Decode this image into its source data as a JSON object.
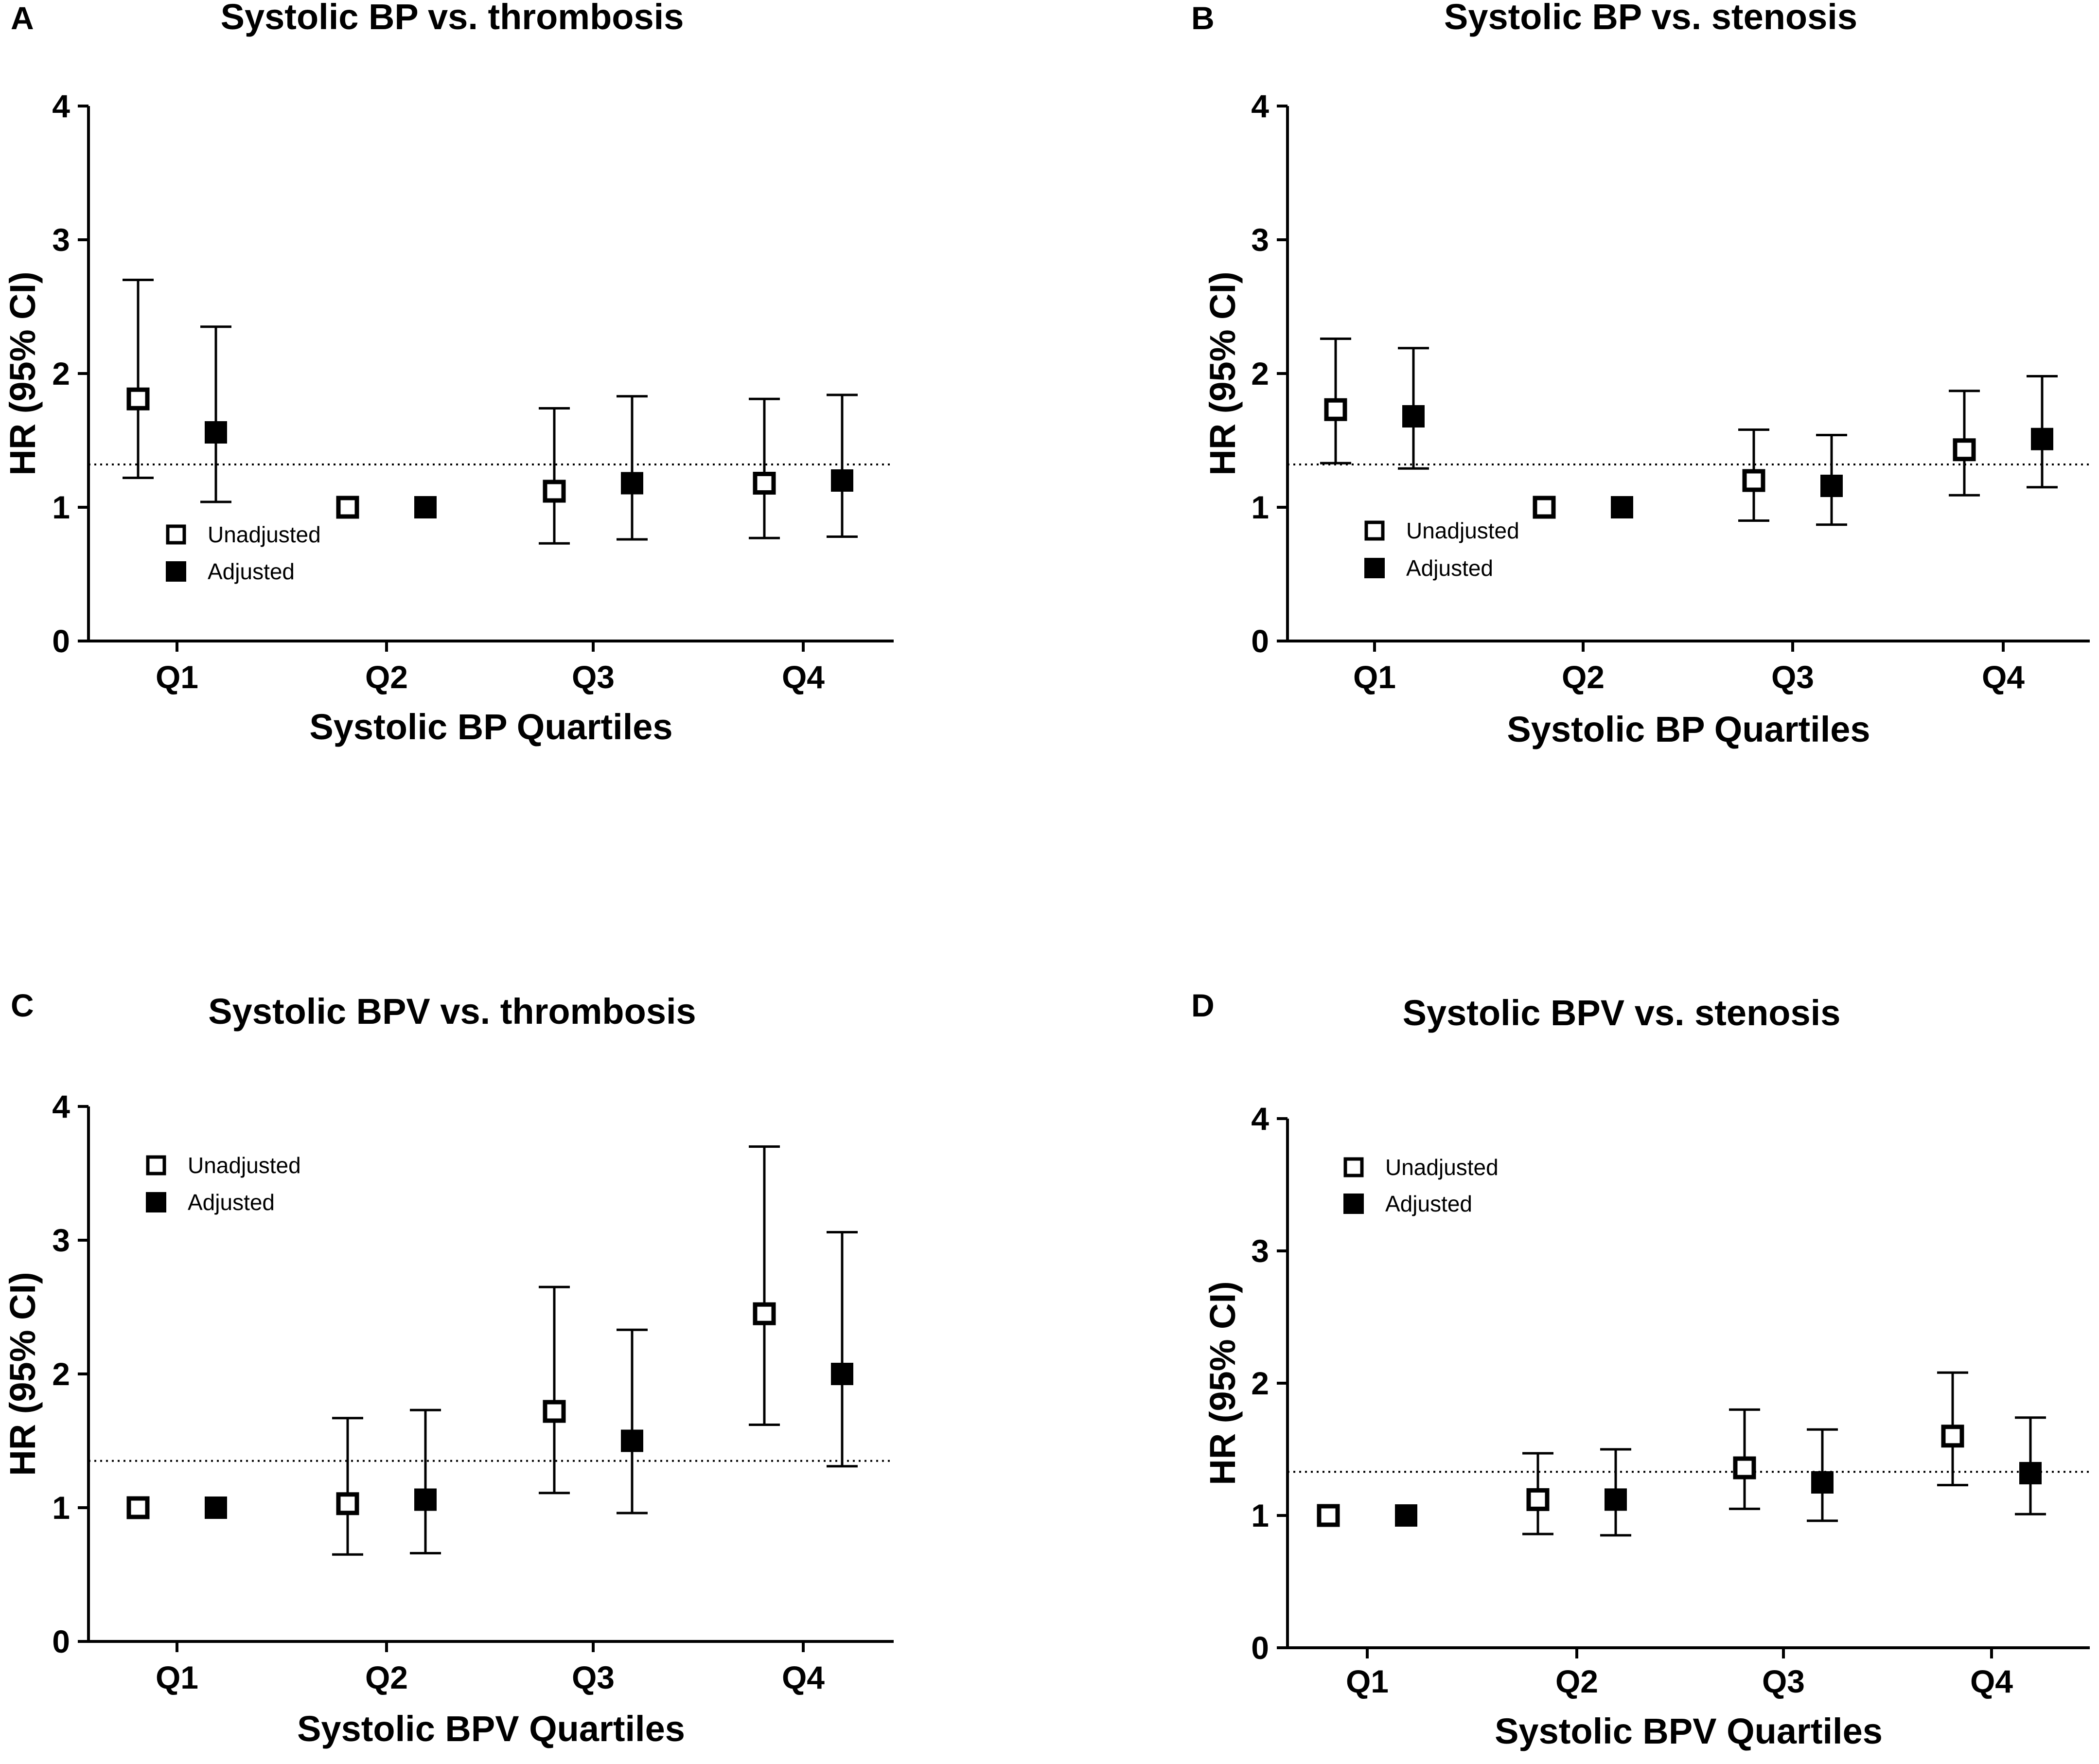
{
  "chart_data": [
    {
      "panel": "A",
      "type": "scatter",
      "title": "Systolic BP vs. thrombosis",
      "xlabel": "Systolic BP Quartiles",
      "ylabel": "HR (95% CI)",
      "categories": [
        "Q1",
        "Q2",
        "Q3",
        "Q4"
      ],
      "ylim": [
        0,
        4
      ],
      "yticks": [
        "0",
        "1",
        "2",
        "3",
        "4"
      ],
      "reference_line": 1.32,
      "legend": [
        "Unadjusted",
        "Adjusted"
      ],
      "legend_position": "lower-left",
      "series": [
        {
          "name": "Unadjusted",
          "marker": "open-square",
          "values": [
            1.81,
            1.0,
            1.12,
            1.18
          ],
          "lower": [
            1.22,
            null,
            0.73,
            0.77
          ],
          "upper": [
            2.7,
            null,
            1.74,
            1.81
          ]
        },
        {
          "name": "Adjusted",
          "marker": "filled-square",
          "values": [
            1.56,
            1.0,
            1.18,
            1.2
          ],
          "lower": [
            1.04,
            null,
            0.76,
            0.78
          ],
          "upper": [
            2.35,
            null,
            1.83,
            1.84
          ]
        }
      ]
    },
    {
      "panel": "B",
      "type": "scatter",
      "title": "Systolic BP vs. stenosis",
      "xlabel": "Systolic BP Quartiles",
      "ylabel": "HR (95% CI)",
      "categories": [
        "Q1",
        "Q2",
        "Q3",
        "Q4"
      ],
      "ylim": [
        0,
        4
      ],
      "yticks": [
        "0",
        "1",
        "2",
        "3",
        "4"
      ],
      "reference_line": 1.32,
      "legend": [
        "Unadjusted",
        "Adjusted"
      ],
      "legend_position": "lower-left",
      "series": [
        {
          "name": "Unadjusted",
          "marker": "open-square",
          "values": [
            1.73,
            1.0,
            1.2,
            1.43
          ],
          "lower": [
            1.33,
            null,
            0.9,
            1.09
          ],
          "upper": [
            2.26,
            null,
            1.58,
            1.87
          ]
        },
        {
          "name": "Adjusted",
          "marker": "filled-square",
          "values": [
            1.68,
            1.0,
            1.16,
            1.51
          ],
          "lower": [
            1.29,
            null,
            0.87,
            1.15
          ],
          "upper": [
            2.19,
            null,
            1.54,
            1.98
          ]
        }
      ]
    },
    {
      "panel": "C",
      "type": "scatter",
      "title": "Systolic BPV vs. thrombosis",
      "xlabel": "Systolic BPV Quartiles",
      "ylabel": "HR (95% CI)",
      "categories": [
        "Q1",
        "Q2",
        "Q3",
        "Q4"
      ],
      "ylim": [
        0,
        4
      ],
      "yticks": [
        "0",
        "1",
        "2",
        "3",
        "4"
      ],
      "reference_line": 1.35,
      "legend": [
        "Unadjusted",
        "Adjusted"
      ],
      "legend_position": "top-left",
      "series": [
        {
          "name": "Unadjusted",
          "marker": "open-square",
          "values": [
            1.0,
            1.03,
            1.72,
            2.45
          ],
          "lower": [
            null,
            0.65,
            1.11,
            1.62
          ],
          "upper": [
            null,
            1.67,
            2.65,
            3.7
          ]
        },
        {
          "name": "Adjusted",
          "marker": "filled-square",
          "values": [
            1.0,
            1.06,
            1.5,
            2.0
          ],
          "lower": [
            null,
            0.66,
            0.96,
            1.31
          ],
          "upper": [
            null,
            1.73,
            2.33,
            3.06
          ]
        }
      ]
    },
    {
      "panel": "D",
      "type": "scatter",
      "title": "Systolic BPV vs. stenosis",
      "xlabel": "Systolic BPV Quartiles",
      "ylabel": "HR (95% CI)",
      "categories": [
        "Q1",
        "Q2",
        "Q3",
        "Q4"
      ],
      "ylim": [
        0,
        4
      ],
      "yticks": [
        "0",
        "1",
        "2",
        "3",
        "4"
      ],
      "reference_line": 1.33,
      "legend": [
        "Unadjusted",
        "Adjusted"
      ],
      "legend_position": "top-left",
      "series": [
        {
          "name": "Unadjusted",
          "marker": "open-square",
          "values": [
            1.0,
            1.12,
            1.36,
            1.6
          ],
          "lower": [
            null,
            0.86,
            1.05,
            1.23
          ],
          "upper": [
            null,
            1.47,
            1.8,
            2.08
          ]
        },
        {
          "name": "Adjusted",
          "marker": "filled-square",
          "values": [
            1.0,
            1.12,
            1.25,
            1.32
          ],
          "lower": [
            null,
            0.85,
            0.96,
            1.01
          ],
          "upper": [
            null,
            1.5,
            1.65,
            1.74
          ]
        }
      ]
    }
  ]
}
